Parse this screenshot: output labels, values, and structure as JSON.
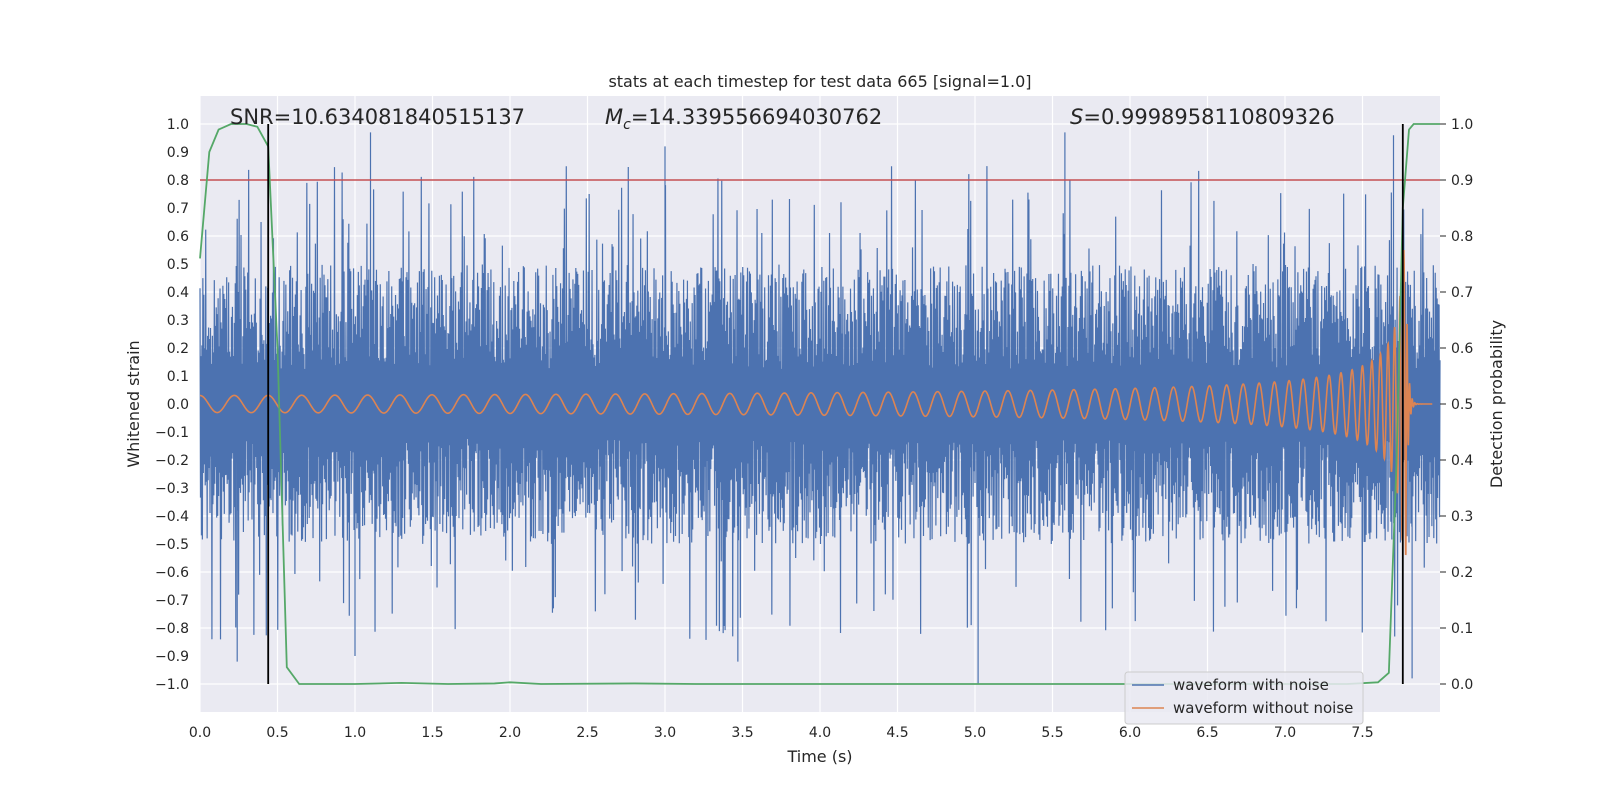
{
  "chart_data": {
    "type": "line",
    "title": "stats at each timestep for test data 665 [signal=1.0]",
    "xlabel": "Time (s)",
    "ylabel": "Whitened strain",
    "y2label": "Detection probability",
    "xlim": [
      0.0,
      8.0
    ],
    "ylim": [
      -1.1,
      1.1
    ],
    "y2lim": [
      -0.05,
      1.05
    ],
    "xticks": [
      "0.0",
      "0.5",
      "1.0",
      "1.5",
      "2.0",
      "2.5",
      "3.0",
      "3.5",
      "4.0",
      "4.5",
      "5.0",
      "5.5",
      "6.0",
      "6.5",
      "7.0",
      "7.5"
    ],
    "yticks": [
      "−1.0",
      "−0.9",
      "−0.8",
      "−0.7",
      "−0.6",
      "−0.5",
      "−0.4",
      "−0.3",
      "−0.2",
      "−0.1",
      "0.0",
      "0.1",
      "0.2",
      "0.3",
      "0.4",
      "0.5",
      "0.6",
      "0.7",
      "0.8",
      "0.9",
      "1.0"
    ],
    "y2ticks": [
      "0.0",
      "0.1",
      "0.2",
      "0.3",
      "0.4",
      "0.5",
      "0.6",
      "0.7",
      "0.8",
      "0.9",
      "1.0"
    ],
    "annotations": {
      "snr": "SNR=10.634081840515137",
      "mc_symbol": "M",
      "mc_sub": "c",
      "mc_value": "=14.339556694030762",
      "s_symbol": "S",
      "s_value": "=0.9998958110809326"
    },
    "threshold": {
      "axis": "y2",
      "value": 0.9,
      "color": "#c44e52"
    },
    "vertical_markers": [
      0.44,
      7.76
    ],
    "legend": {
      "position": "lower-right",
      "entries": [
        {
          "label": "waveform with noise",
          "color": "#4c72b0"
        },
        {
          "label": "waveform without noise",
          "color": "#dd8452"
        }
      ]
    },
    "series": [
      {
        "name": "waveform with noise",
        "color": "#4c72b0",
        "description": "dense whitened noise trace, mostly within ±0.5, peaks near ±1.0",
        "x_range": [
          0.0,
          8.0
        ],
        "envelope": 0.5,
        "peaks": [
          {
            "x": 1.1,
            "y": 0.97
          },
          {
            "x": 3.0,
            "y": 0.92
          },
          {
            "x": 5.58,
            "y": 0.97
          },
          {
            "x": 7.7,
            "y": 0.96
          },
          {
            "x": 0.24,
            "y": -0.92
          },
          {
            "x": 1.0,
            "y": -0.9
          },
          {
            "x": 3.47,
            "y": -0.92
          },
          {
            "x": 5.02,
            "y": -1.0
          },
          {
            "x": 7.82,
            "y": -0.98
          }
        ]
      },
      {
        "name": "waveform without noise",
        "color": "#dd8452",
        "description": "chirp signal growing in amplitude and frequency until merger near t=7.78 s",
        "amplitude_start": 0.01,
        "amplitude_peak": 0.55,
        "merger_time": 7.78
      },
      {
        "name": "detection probability",
        "axis": "y2",
        "color": "#55a868",
        "x": [
          0.0,
          0.06,
          0.12,
          0.2,
          0.3,
          0.37,
          0.44,
          0.5,
          0.56,
          0.64,
          0.8,
          1.0,
          1.3,
          1.6,
          1.9,
          2.0,
          2.2,
          2.8,
          3.2,
          4.0,
          5.0,
          6.0,
          7.0,
          7.4,
          7.6,
          7.67,
          7.72,
          7.76,
          7.8,
          7.83,
          8.0
        ],
        "y": [
          0.76,
          0.95,
          0.99,
          1.0,
          1.0,
          0.995,
          0.96,
          0.6,
          0.03,
          0.0,
          0.0,
          0.0,
          0.002,
          0.0,
          0.001,
          0.003,
          0.0,
          0.001,
          0.0,
          0.0,
          0.0,
          0.0,
          0.0,
          0.0,
          0.003,
          0.02,
          0.4,
          0.85,
          0.99,
          1.0,
          1.0
        ]
      }
    ]
  }
}
